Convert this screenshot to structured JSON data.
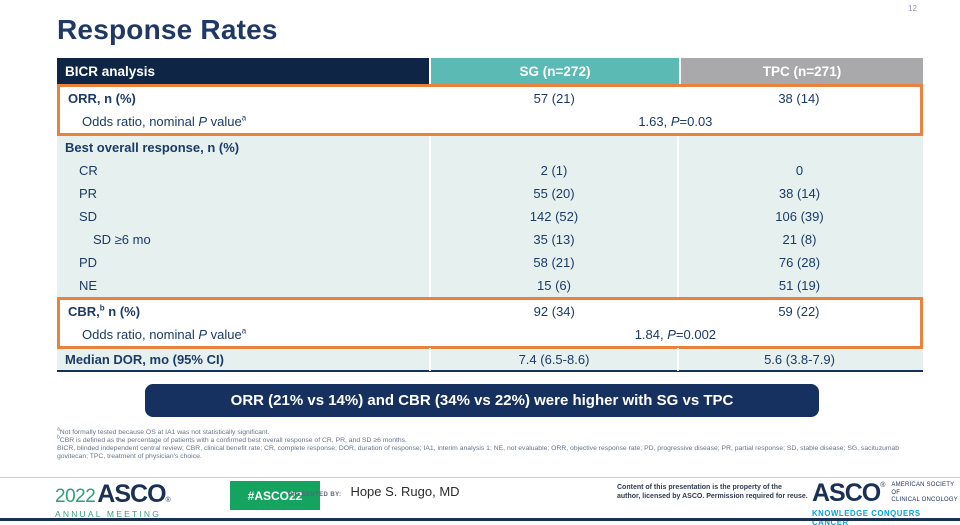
{
  "page_number": "12",
  "title": "Response Rates",
  "colors": {
    "header_navy": "#0e2546",
    "teal": "#5bbab3",
    "gray": "#a9a9ab",
    "mint": "#e6f1ef",
    "orange": "#e8823c",
    "callout_navy": "#16305f",
    "text_navy": "#1c3a66",
    "green": "#2f9f74",
    "badge_green": "#14a45f",
    "tagline_blue": "#0aa0d5"
  },
  "table": {
    "header": {
      "analysis": "BICR analysis",
      "sg": "SG (n=272)",
      "tpc": "TPC (n=271)"
    },
    "orr": {
      "label": "ORR, n (%)",
      "sg": "57 (21)",
      "tpc": "38 (14)"
    },
    "orr_odds": {
      "pre": "Odds ratio, nominal ",
      "p": "P",
      "post": " value",
      "sup": "a",
      "val_pre": "1.63, ",
      "val_p": "P",
      "val_post": "=0.03"
    },
    "best_overall": {
      "label": "Best overall response, n (%)"
    },
    "cr": {
      "label": "CR",
      "sg": "2 (1)",
      "tpc": "0"
    },
    "pr": {
      "label": "PR",
      "sg": "55 (20)",
      "tpc": "38 (14)"
    },
    "sd": {
      "label": "SD",
      "sg": "142 (52)",
      "tpc": "106 (39)"
    },
    "sd6": {
      "label": "SD ≥6 mo",
      "sg": "35 (13)",
      "tpc": "21 (8)"
    },
    "pd": {
      "label": "PD",
      "sg": "58 (21)",
      "tpc": "76 (28)"
    },
    "ne": {
      "label": "NE",
      "sg": "15 (6)",
      "tpc": "51 (19)"
    },
    "cbr": {
      "pre": "CBR,",
      "sup": "b",
      "post": " n (%)",
      "sg": "92 (34)",
      "tpc": "59 (22)"
    },
    "cbr_odds": {
      "pre": "Odds ratio, nominal ",
      "p": "P",
      "post": " value",
      "sup": "a",
      "val_pre": "1.84, ",
      "val_p": "P",
      "val_post": "=0.002"
    },
    "dor": {
      "label": "Median DOR, mo (95% CI)",
      "sg": "7.4 (6.5-8.6)",
      "tpc": "5.6 (3.8-7.9)"
    }
  },
  "callout": "ORR (21% vs 14%) and CBR (34% vs 22%) were higher with SG vs TPC",
  "footnotes": {
    "a_sup": "a",
    "a_text": "Not formally tested because OS at IA1 was not statistically significant.",
    "b_sup": "b",
    "b_text": "CBR is defined as the percentage of patients with a confirmed best overall response of CR, PR, and SD ≥6 months.",
    "abbrev": "BICR, blinded independent central review; CBR, clinical benefit rate; CR, complete response; DOR, duration of response; IA1, interim analysis 1; NE, not evaluable; ORR, objective response rate; PD, progressive disease; PR, partial response; SD, stable disease; SG, sacituzumab govitecan; TPC, treatment of physician's choice."
  },
  "footer": {
    "year": "2022",
    "asco_wordmark": "ASCO",
    "reg": "®",
    "annual_meeting": "ANNUAL MEETING",
    "hashtag": "#ASCO22",
    "presented_by": "PRESENTED BY:",
    "presenter": "Hope S. Rugo, MD",
    "rights_line1": "Content of this presentation is the property of the",
    "rights_line2": "author, licensed by ASCO. Permission required for reuse.",
    "asco_logo": "ASCO",
    "society_line1": "AMERICAN SOCIETY OF",
    "society_line2": "CLINICAL ONCOLOGY",
    "tagline": "KNOWLEDGE CONQUERS CANCER"
  }
}
